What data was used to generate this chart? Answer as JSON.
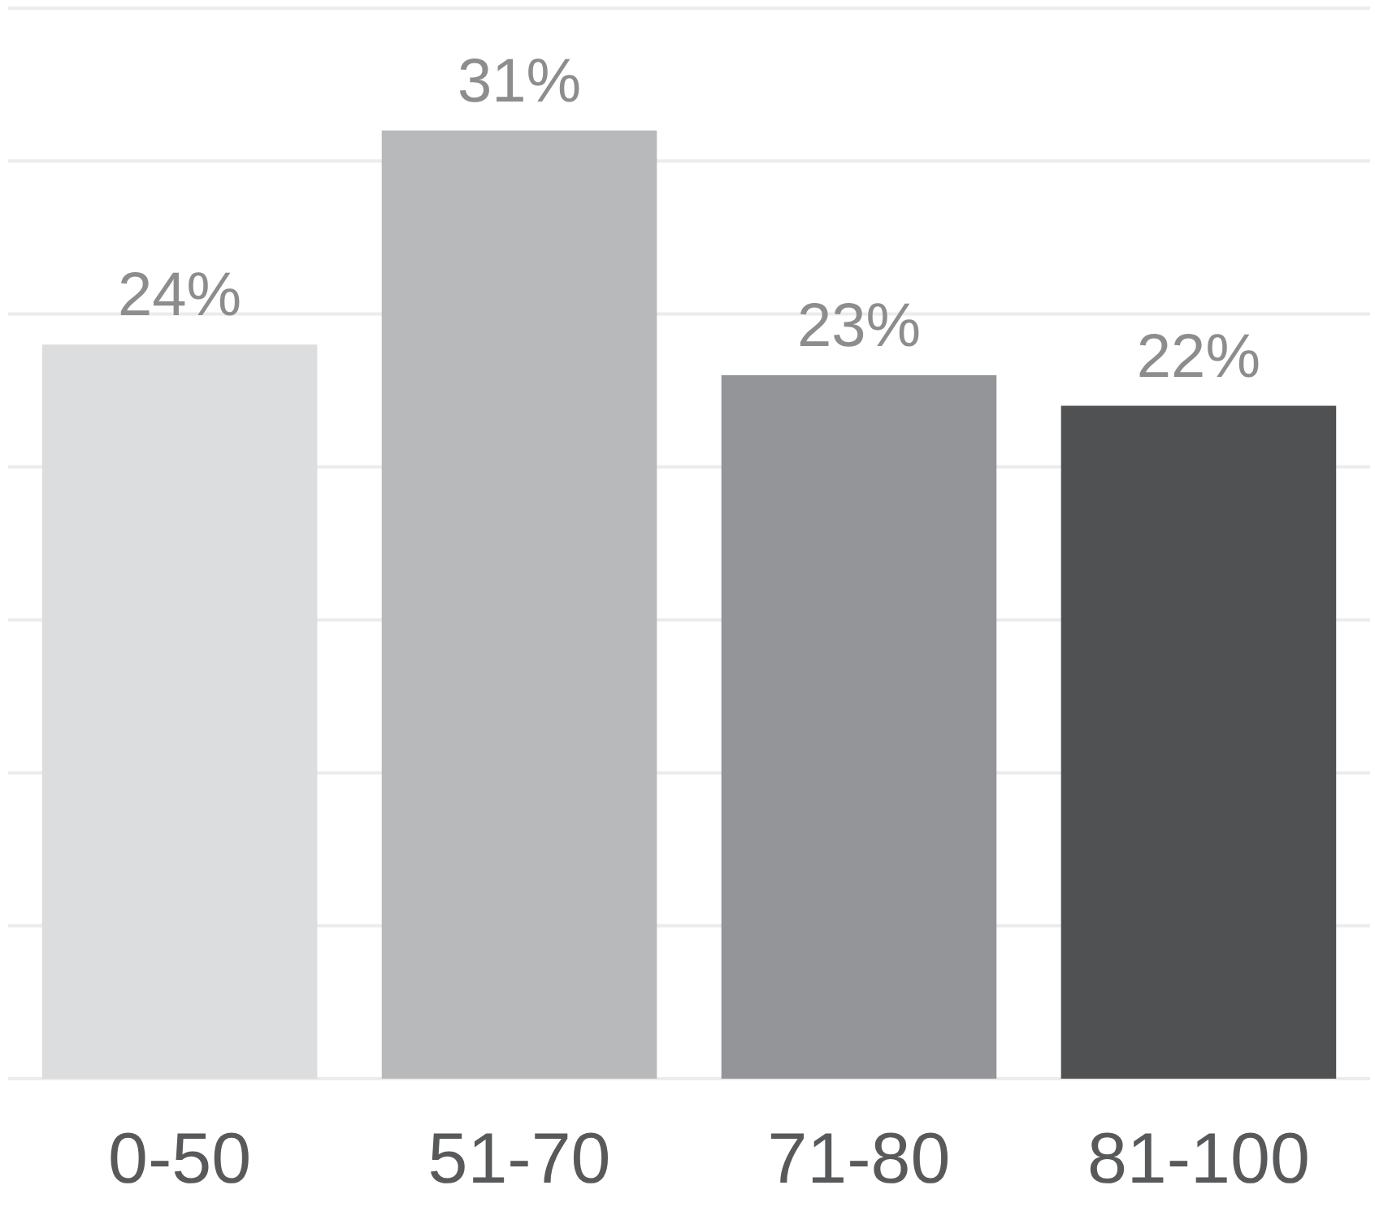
{
  "chart_data": {
    "type": "bar",
    "categories": [
      "0-50",
      "51-70",
      "71-80",
      "81-100"
    ],
    "values": [
      24,
      31,
      23,
      22
    ],
    "colors": [
      "#dcdddf",
      "#b8b9bb",
      "#939598",
      "#505153"
    ],
    "value_labels": [
      "24%",
      "31%",
      "23%",
      "22%"
    ],
    "ylim": [
      0,
      35
    ],
    "yticks": [
      {
        "value": 0,
        "label": null
      },
      {
        "value": 5,
        "label": null
      },
      {
        "value": 10,
        "label": null
      },
      {
        "value": 15,
        "label": null
      },
      {
        "value": 20,
        "label": null
      },
      {
        "value": 25,
        "label": null
      },
      {
        "value": 30,
        "label": null
      },
      {
        "value": 35,
        "label": null
      }
    ],
    "grid": "y",
    "tick_labels": "x"
  }
}
